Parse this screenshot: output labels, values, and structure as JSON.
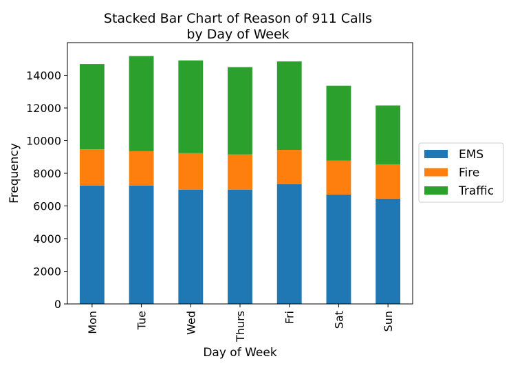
{
  "chart_data": {
    "type": "bar",
    "stacked": true,
    "title": "Stacked Bar Chart of Reason of 911 Calls",
    "subtitle": "by Day of Week",
    "xlabel": "Day of Week",
    "ylabel": "Frequency",
    "categories": [
      "Mon",
      "Tue",
      "Wed",
      "Thurs",
      "Fri",
      "Sat",
      "Sun"
    ],
    "series": [
      {
        "name": "EMS",
        "color": "#1f77b4",
        "values": [
          7250,
          7250,
          7000,
          7000,
          7330,
          6700,
          6450
        ]
      },
      {
        "name": "Fire",
        "color": "#ff7f0e",
        "values": [
          2220,
          2100,
          2230,
          2150,
          2100,
          2080,
          2100
        ]
      },
      {
        "name": "Traffic",
        "color": "#2ca02c",
        "values": [
          5220,
          5830,
          5680,
          5350,
          5420,
          4580,
          3600
        ]
      }
    ],
    "ylim": [
      0,
      16000
    ],
    "yticks": [
      0,
      2000,
      4000,
      6000,
      8000,
      10000,
      12000,
      14000
    ],
    "grid": false,
    "legend_position": "right"
  }
}
